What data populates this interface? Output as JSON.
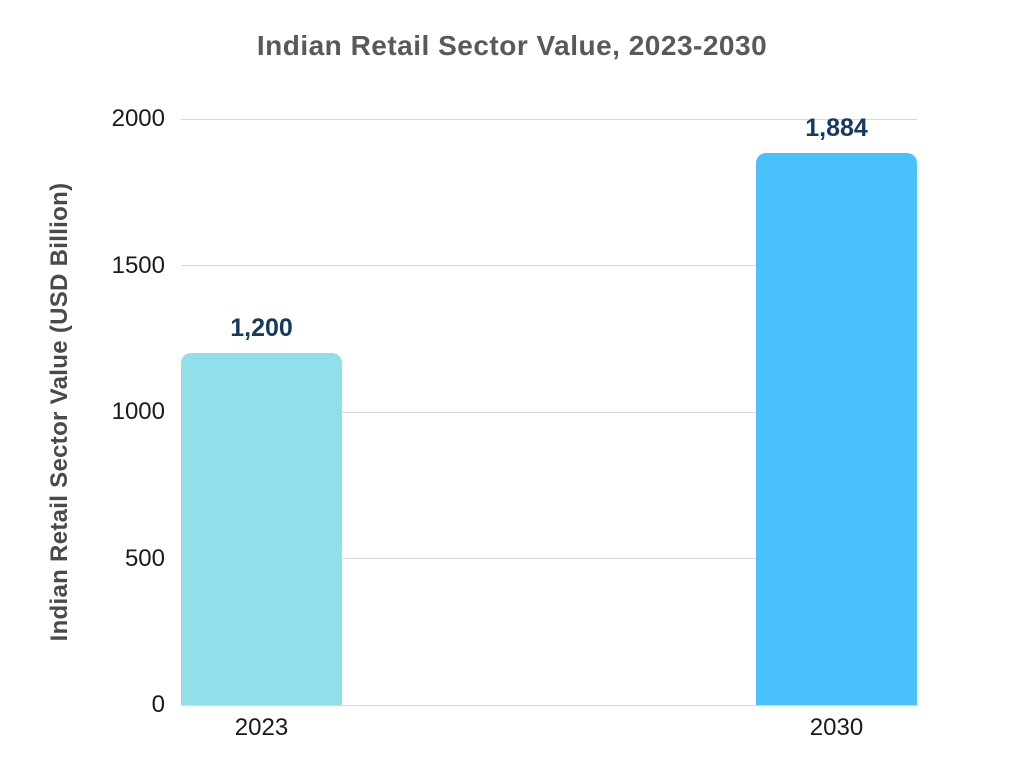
{
  "chart_data": {
    "type": "bar",
    "title": "Indian Retail Sector Value, 2023-2030",
    "ylabel": "Indian Retail Sector Value (USD Billion)",
    "xlabel": "",
    "categories": [
      "2023",
      "2030"
    ],
    "values": [
      1200,
      1884
    ],
    "data_labels": [
      "1,200",
      "1,884"
    ],
    "ylim": [
      0,
      2000
    ],
    "yticks": [
      0,
      500,
      1000,
      1500,
      2000
    ],
    "ytick_labels": [
      "0",
      "500",
      "1000",
      "1500",
      "2000"
    ],
    "grid": true,
    "legend": false,
    "bar_colors": [
      "#92DFEC",
      "#48C1FC"
    ]
  },
  "colors": {
    "background": "#FFFFFF",
    "title": "#595959",
    "axis_label": "#4A4A4A",
    "tick_label": "#1A1A1A",
    "gridline": "#D9D9D9",
    "value_label": "#17395F"
  }
}
